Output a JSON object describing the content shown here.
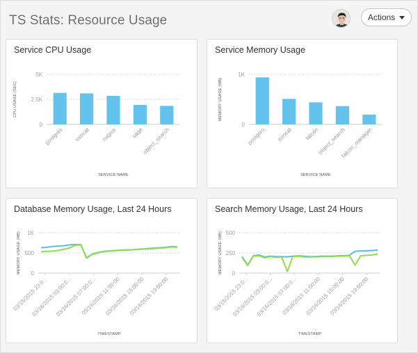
{
  "header": {
    "title": "TS Stats: Resource Usage",
    "actions_label": "Actions"
  },
  "colors": {
    "bar": "#63c3ec",
    "line_blue": "#5db9e8",
    "line_green": "#8fdc4c"
  },
  "panels": [
    {
      "title": "Service CPU Usage",
      "chart_data": {
        "type": "bar",
        "categories": [
          "postgres",
          "tomcat",
          "nagios",
          "sage",
          "object_search"
        ],
        "values": [
          3150,
          3100,
          2850,
          1950,
          1850
        ],
        "ylabel": "CPU USAGE (SEC)",
        "xlabel": "SERVICE NAME",
        "ylim": [
          0,
          5000
        ],
        "yticks": [
          0,
          2500,
          5000
        ],
        "ytick_labels": [
          "0",
          "2.5K",
          "5K"
        ],
        "grid": true
      }
    },
    {
      "title": "Service Memory Usage",
      "chart_data": {
        "type": "bar",
        "categories": [
          "postgres",
          "tomcat",
          "falcon",
          "object_search",
          "falcon_manager"
        ],
        "values": [
          940,
          510,
          440,
          365,
          195
        ],
        "ylabel": "MEMORY USAGE (MB)",
        "xlabel": "SERVICE NAME",
        "ylim": [
          0,
          1000
        ],
        "yticks": [
          0,
          1000
        ],
        "ytick_labels": [
          "0",
          "1K"
        ],
        "grid": true
      }
    },
    {
      "title": "Database Memory Usage, Last 24 Hours",
      "chart_data": {
        "type": "line",
        "ylabel": "MEMORY USAGE (MB)",
        "xlabel": "TIMESTAMP",
        "ylim": [
          0,
          1000
        ],
        "yticks": [
          0,
          500,
          1000
        ],
        "ytick_labels": [
          "0",
          "500",
          "1K"
        ],
        "xtick_labels": [
          "03/15/2015 23:0...",
          "03/16/2015 03:00:0...",
          "03/16/2015 07:00:0...",
          "03/16/2015 11:00:00",
          "03/16/2015 15:00:00",
          "03/16/2015 19:00:00"
        ],
        "x": [
          0,
          1,
          2,
          3,
          4,
          5,
          6,
          7,
          8,
          9,
          10,
          11,
          12,
          13,
          14,
          15,
          16,
          17,
          18,
          19,
          20,
          21,
          22,
          23,
          24
        ],
        "series": [
          {
            "values": [
              630,
              640,
              660,
              670,
              680,
              700,
              710,
              710,
              380,
              470,
              510,
              540,
              550,
              560,
              570,
              575,
              580,
              590,
              600,
              610,
              620,
              630,
              640,
              660,
              650
            ]
          },
          {
            "values": [
              530,
              540,
              545,
              560,
              590,
              620,
              690,
              700,
              370,
              460,
              500,
              530,
              545,
              555,
              565,
              570,
              575,
              585,
              595,
              600,
              610,
              620,
              630,
              650,
              640
            ]
          }
        ],
        "grid": true
      }
    },
    {
      "title": "Search Memory Usage, Last 24 Hours",
      "chart_data": {
        "type": "line",
        "ylabel": "MEMORY USAGE (MB)",
        "xlabel": "TIMESTAMP",
        "ylim": [
          0,
          500
        ],
        "yticks": [
          0,
          250,
          500
        ],
        "ytick_labels": [
          "0",
          "250",
          "500"
        ],
        "xtick_labels": [
          "03/15/2015 23:0...",
          "03/16/2015 03:00:0...",
          "03/16/2015 07:00:0...",
          "03/16/2015 11:00:00",
          "03/16/2015 15:00:00",
          "03/16/2015 19:00:00"
        ],
        "x": [
          0,
          1,
          2,
          3,
          4,
          5,
          6,
          7,
          8,
          9,
          10,
          11,
          12,
          13,
          14,
          15,
          16,
          17,
          18,
          19,
          20,
          21,
          22,
          23,
          24
        ],
        "series": [
          {
            "values": [
              205,
              100,
              215,
              225,
              200,
              210,
              205,
              205,
              200,
              210,
              215,
              210,
              205,
              205,
              210,
              210,
              210,
              215,
              215,
              220,
              270,
              275,
              275,
              280,
              285
            ]
          },
          {
            "values": [
              195,
              95,
              210,
              215,
              190,
              205,
              195,
              200,
              20,
              205,
              210,
              200,
              200,
              200,
              205,
              205,
              205,
              210,
              210,
              215,
              100,
              215,
              220,
              225,
              235
            ]
          }
        ],
        "grid": true
      }
    }
  ]
}
